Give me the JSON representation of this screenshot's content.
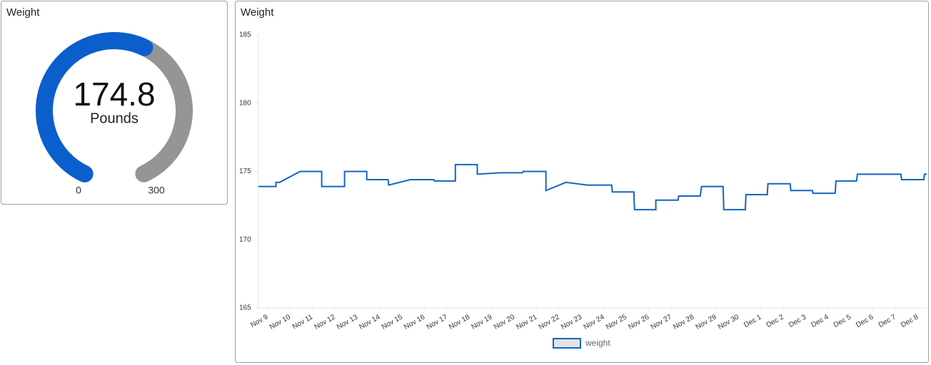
{
  "chart_data": [
    {
      "type": "gauge",
      "title": "Weight",
      "value": 174.8,
      "unit": "Pounds",
      "min": 0,
      "max": 300,
      "color": "#0a5fcd",
      "track_color": "#959595"
    },
    {
      "type": "line",
      "title": "Weight",
      "x": [
        -0.4,
        0.38,
        0.38,
        0.54,
        1.46,
        2.42,
        2.42,
        3.44,
        3.44,
        4.43,
        4.43,
        5.38,
        5.41,
        6.37,
        7.42,
        7.45,
        8.38,
        8.38,
        9.36,
        9.36,
        10.35,
        11.37,
        11.4,
        12.42,
        12.42,
        13.31,
        14.27,
        15.35,
        15.38,
        16.34,
        16.37,
        17.32,
        17.32,
        18.31,
        18.34,
        19.3,
        19.36,
        20.32,
        20.35,
        21.31,
        21.34,
        22.29,
        22.32,
        23.31,
        23.34,
        24.3,
        24.33,
        25.32,
        25.35,
        26.27,
        26.31,
        28.25,
        28.28,
        29.27,
        29.3,
        29.4
      ],
      "series": [
        {
          "name": "weight",
          "color": "#1565c0",
          "values": [
            173.9,
            173.9,
            174.2,
            174.2,
            175.0,
            175.0,
            173.9,
            173.9,
            175.0,
            175.0,
            174.4,
            174.4,
            174.0,
            174.4,
            174.4,
            174.3,
            174.3,
            175.5,
            175.5,
            174.8,
            174.9,
            174.9,
            175.0,
            175.0,
            173.6,
            174.2,
            174.0,
            174.0,
            173.5,
            173.5,
            172.2,
            172.2,
            172.9,
            172.9,
            173.2,
            173.2,
            173.9,
            173.9,
            172.2,
            172.2,
            173.3,
            173.3,
            174.1,
            174.1,
            173.6,
            173.6,
            173.4,
            173.4,
            174.3,
            174.3,
            174.8,
            174.8,
            174.4,
            174.4,
            174.8,
            174.8
          ]
        }
      ],
      "xlim": [
        -0.4,
        29.4
      ],
      "xticks": [
        {
          "value": 0,
          "label": "Nov 9"
        },
        {
          "value": 1,
          "label": "Nov 10"
        },
        {
          "value": 2,
          "label": "Nov 11"
        },
        {
          "value": 3,
          "label": "Nov 12"
        },
        {
          "value": 4,
          "label": "Nov 13"
        },
        {
          "value": 5,
          "label": "Nov 14"
        },
        {
          "value": 6,
          "label": "Nov 15"
        },
        {
          "value": 7,
          "label": "Nov 16"
        },
        {
          "value": 8,
          "label": "Nov 17"
        },
        {
          "value": 9,
          "label": "Nov 18"
        },
        {
          "value": 10,
          "label": "Nov 19"
        },
        {
          "value": 11,
          "label": "Nov 20"
        },
        {
          "value": 12,
          "label": "Nov 21"
        },
        {
          "value": 13,
          "label": "Nov 22"
        },
        {
          "value": 14,
          "label": "Nov 23"
        },
        {
          "value": 15,
          "label": "Nov 24"
        },
        {
          "value": 16,
          "label": "Nov 25"
        },
        {
          "value": 17,
          "label": "Nov 26"
        },
        {
          "value": 18,
          "label": "Nov 27"
        },
        {
          "value": 19,
          "label": "Nov 28"
        },
        {
          "value": 20,
          "label": "Nov 29"
        },
        {
          "value": 21,
          "label": "Nov 30"
        },
        {
          "value": 22,
          "label": "Dec 1"
        },
        {
          "value": 23,
          "label": "Dec 2"
        },
        {
          "value": 24,
          "label": "Dec 3"
        },
        {
          "value": 25,
          "label": "Dec 4"
        },
        {
          "value": 26,
          "label": "Dec 5"
        },
        {
          "value": 27,
          "label": "Dec 6"
        },
        {
          "value": 28,
          "label": "Dec 7"
        },
        {
          "value": 29,
          "label": "Dec 8"
        }
      ],
      "ylim": [
        165,
        185
      ],
      "yticks": [
        165,
        170,
        175,
        180,
        185
      ]
    }
  ]
}
